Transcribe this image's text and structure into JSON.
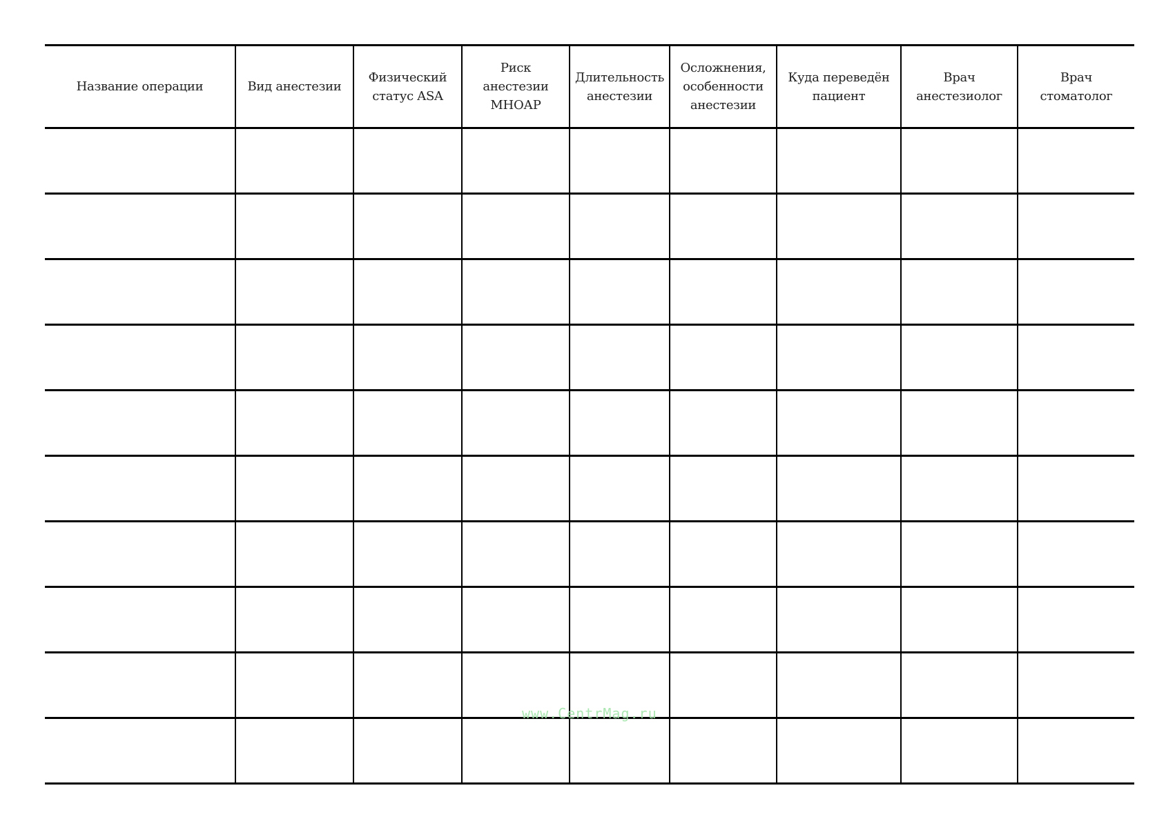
{
  "table": {
    "headers": [
      [
        "Название операции"
      ],
      [
        "Вид анестезии"
      ],
      [
        "Физический",
        "статус ASA"
      ],
      [
        "Риск",
        "анестезии",
        "МНОАР"
      ],
      [
        "Длительность",
        "анестезии"
      ],
      [
        "Осложнения,",
        "особенности",
        "анестезии"
      ],
      [
        "Куда переведён",
        "пациент"
      ],
      [
        "Врач",
        "анестезиолог"
      ],
      [
        "Врач",
        "стоматолог"
      ]
    ],
    "empty_rows": 10
  },
  "watermark": "www.CentrMag.ru",
  "colors": {
    "lines": "#000000",
    "watermark": "#9fe3a6"
  }
}
